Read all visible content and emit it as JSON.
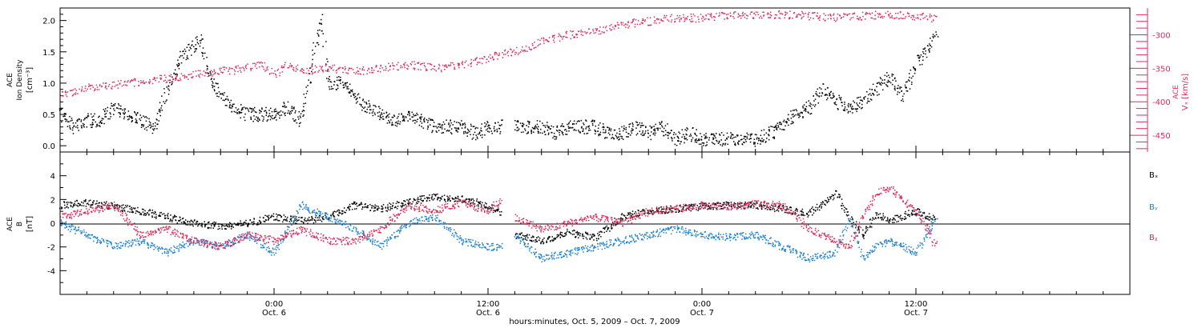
{
  "colors": {
    "black": "#000000",
    "red": "#dc2d5a",
    "blue": "#1a7fd4"
  },
  "chart_data": [
    {
      "type": "scatter",
      "panel": "top",
      "ylabel_lines": [
        "ACE",
        "Ion Density",
        "[cm⁻³]"
      ],
      "ylim": [
        -0.1,
        2.2
      ],
      "yticks": [
        "0.0",
        "0.5",
        "1.0",
        "1.5",
        "2.0"
      ],
      "right_axis": {
        "label_lines": [
          "ACE",
          "Vₓ [km/s]"
        ],
        "ylim": [
          -475,
          -260
        ],
        "yticks": [
          "-300",
          "-350",
          "-400",
          "-450"
        ]
      },
      "series": [
        {
          "color": "#000000",
          "axis": "left",
          "points": [
            [
              0,
              0.5
            ],
            [
              2,
              0.3
            ],
            [
              4,
              0.4
            ],
            [
              6,
              0.4
            ],
            [
              8,
              0.6
            ],
            [
              10,
              0.5
            ],
            [
              12,
              0.4
            ],
            [
              14,
              0.3
            ],
            [
              16,
              0.9
            ],
            [
              18,
              1.4
            ],
            [
              20,
              1.6
            ],
            [
              21,
              1.7
            ],
            [
              22,
              1.2
            ],
            [
              24,
              0.8
            ],
            [
              26,
              0.6
            ],
            [
              28,
              0.5
            ],
            [
              30,
              0.5
            ],
            [
              32,
              0.5
            ],
            [
              34,
              0.6
            ],
            [
              36,
              0.4
            ],
            [
              38,
              1.5
            ],
            [
              39,
              2.1
            ],
            [
              40,
              1.0
            ],
            [
              42,
              1.0
            ],
            [
              44,
              0.8
            ],
            [
              46,
              0.6
            ],
            [
              48,
              0.5
            ],
            [
              50,
              0.4
            ],
            [
              52,
              0.5
            ],
            [
              54,
              0.4
            ],
            [
              56,
              0.3
            ],
            [
              58,
              0.3
            ],
            [
              60,
              0.3
            ],
            [
              62,
              0.2
            ],
            [
              64,
              0.3
            ],
            [
              66,
              0.3
            ],
            [
              68,
              0.3
            ],
            [
              70,
              0.3
            ],
            [
              72,
              0.3
            ],
            [
              74,
              0.2
            ],
            [
              76,
              0.3
            ],
            [
              78,
              0.3
            ],
            [
              80,
              0.3
            ],
            [
              82,
              0.2
            ],
            [
              84,
              0.2
            ],
            [
              86,
              0.3
            ],
            [
              88,
              0.2
            ],
            [
              90,
              0.3
            ],
            [
              92,
              0.1
            ],
            [
              94,
              0.2
            ],
            [
              96,
              0.1
            ],
            [
              98,
              0.1
            ],
            [
              100,
              0.1
            ],
            [
              102,
              0.1
            ],
            [
              104,
              0.1
            ],
            [
              106,
              0.2
            ],
            [
              108,
              0.3
            ],
            [
              110,
              0.5
            ],
            [
              112,
              0.6
            ],
            [
              114,
              0.9
            ],
            [
              116,
              0.7
            ],
            [
              118,
              0.6
            ],
            [
              120,
              0.7
            ],
            [
              122,
              0.9
            ],
            [
              124,
              1.1
            ],
            [
              126,
              0.8
            ],
            [
              128,
              1.3
            ],
            [
              130,
              1.6
            ],
            [
              131,
              1.8
            ]
          ],
          "gap_after_x": [
            66
          ]
        },
        {
          "color": "#dc2d5a",
          "axis": "right",
          "points": [
            [
              0,
              -390
            ],
            [
              4,
              -380
            ],
            [
              8,
              -375
            ],
            [
              12,
              -370
            ],
            [
              16,
              -365
            ],
            [
              20,
              -360
            ],
            [
              24,
              -355
            ],
            [
              28,
              -350
            ],
            [
              30,
              -345
            ],
            [
              32,
              -360
            ],
            [
              34,
              -345
            ],
            [
              36,
              -355
            ],
            [
              40,
              -350
            ],
            [
              44,
              -355
            ],
            [
              48,
              -350
            ],
            [
              52,
              -345
            ],
            [
              56,
              -350
            ],
            [
              60,
              -345
            ],
            [
              64,
              -335
            ],
            [
              68,
              -325
            ],
            [
              70,
              -320
            ],
            [
              72,
              -310
            ],
            [
              74,
              -305
            ],
            [
              76,
              -300
            ],
            [
              80,
              -295
            ],
            [
              84,
              -285
            ],
            [
              88,
              -280
            ],
            [
              92,
              -275
            ],
            [
              96,
              -275
            ],
            [
              100,
              -272
            ],
            [
              104,
              -270
            ],
            [
              108,
              -270
            ],
            [
              112,
              -272
            ],
            [
              116,
              -275
            ],
            [
              120,
              -272
            ],
            [
              124,
              -270
            ],
            [
              128,
              -273
            ],
            [
              131,
              -275
            ]
          ],
          "gap_after_x": [
            66
          ]
        }
      ]
    },
    {
      "type": "scatter",
      "panel": "bottom",
      "ylabel_lines": [
        "ACE",
        "B",
        "[nT]"
      ],
      "ylim": [
        -6,
        6
      ],
      "yticks": [
        "4",
        "2",
        "0",
        "-2",
        "-4"
      ],
      "series": [
        {
          "name": "Bₓ",
          "color": "#000000",
          "points": [
            [
              0,
              1.5
            ],
            [
              4,
              1.7
            ],
            [
              8,
              1.4
            ],
            [
              12,
              1.0
            ],
            [
              16,
              0.5
            ],
            [
              20,
              0.0
            ],
            [
              24,
              -0.3
            ],
            [
              28,
              0.0
            ],
            [
              32,
              0.5
            ],
            [
              36,
              0.2
            ],
            [
              40,
              0.5
            ],
            [
              44,
              1.5
            ],
            [
              48,
              1.2
            ],
            [
              52,
              1.8
            ],
            [
              56,
              2.2
            ],
            [
              60,
              2.0
            ],
            [
              64,
              1.5
            ],
            [
              66,
              0.8
            ],
            [
              68,
              -1.0
            ],
            [
              72,
              -1.5
            ],
            [
              76,
              -0.8
            ],
            [
              80,
              -1.2
            ],
            [
              84,
              0.5
            ],
            [
              88,
              1.0
            ],
            [
              92,
              1.2
            ],
            [
              96,
              1.4
            ],
            [
              100,
              1.5
            ],
            [
              104,
              1.5
            ],
            [
              108,
              1.2
            ],
            [
              112,
              0.8
            ],
            [
              116,
              2.5
            ],
            [
              118,
              0.5
            ],
            [
              120,
              -1.0
            ],
            [
              122,
              0.8
            ],
            [
              124,
              0.2
            ],
            [
              128,
              1.0
            ],
            [
              131,
              0.3
            ]
          ],
          "gap_after_x": [
            66
          ]
        },
        {
          "name": "Bᵧ",
          "color": "#1a7fd4",
          "points": [
            [
              0,
              0.0
            ],
            [
              4,
              -1.0
            ],
            [
              8,
              -2.0
            ],
            [
              12,
              -1.5
            ],
            [
              16,
              -2.5
            ],
            [
              20,
              -1.5
            ],
            [
              24,
              -2.0
            ],
            [
              28,
              -1.0
            ],
            [
              32,
              -2.5
            ],
            [
              36,
              1.5
            ],
            [
              40,
              0.5
            ],
            [
              44,
              -0.5
            ],
            [
              48,
              -2.0
            ],
            [
              52,
              0.0
            ],
            [
              56,
              0.5
            ],
            [
              60,
              -1.5
            ],
            [
              64,
              -2.0
            ],
            [
              66,
              -2.0
            ],
            [
              68,
              -1.0
            ],
            [
              72,
              -3.0
            ],
            [
              76,
              -2.5
            ],
            [
              80,
              -2.0
            ],
            [
              84,
              -1.5
            ],
            [
              88,
              -1.0
            ],
            [
              92,
              -0.5
            ],
            [
              96,
              -1.0
            ],
            [
              100,
              -1.2
            ],
            [
              104,
              -1.0
            ],
            [
              108,
              -2.0
            ],
            [
              112,
              -3.0
            ],
            [
              116,
              -2.5
            ],
            [
              118,
              0.5
            ],
            [
              120,
              -3.0
            ],
            [
              122,
              -2.0
            ],
            [
              124,
              -1.5
            ],
            [
              128,
              -2.5
            ],
            [
              131,
              0.5
            ]
          ],
          "gap_after_x": [
            66
          ]
        },
        {
          "name": "Bᵪ",
          "color": "#dc2d5a",
          "points": [
            [
              0,
              0.5
            ],
            [
              4,
              1.0
            ],
            [
              8,
              1.5
            ],
            [
              12,
              -1.0
            ],
            [
              16,
              -0.5
            ],
            [
              20,
              -1.5
            ],
            [
              24,
              -2.0
            ],
            [
              28,
              -1.0
            ],
            [
              32,
              -1.5
            ],
            [
              36,
              -0.5
            ],
            [
              40,
              -1.5
            ],
            [
              44,
              -1.5
            ],
            [
              48,
              -0.5
            ],
            [
              52,
              1.5
            ],
            [
              56,
              1.0
            ],
            [
              60,
              1.8
            ],
            [
              64,
              1.0
            ],
            [
              66,
              2.0
            ],
            [
              68,
              0.5
            ],
            [
              72,
              -0.5
            ],
            [
              76,
              0.0
            ],
            [
              80,
              0.5
            ],
            [
              84,
              0.0
            ],
            [
              88,
              1.0
            ],
            [
              92,
              1.2
            ],
            [
              96,
              1.5
            ],
            [
              100,
              1.4
            ],
            [
              104,
              1.6
            ],
            [
              108,
              1.5
            ],
            [
              112,
              -0.5
            ],
            [
              116,
              -1.5
            ],
            [
              118,
              -2.0
            ],
            [
              120,
              0.5
            ],
            [
              122,
              2.5
            ],
            [
              124,
              3.0
            ],
            [
              128,
              1.0
            ],
            [
              131,
              -2.0
            ]
          ],
          "gap_after_x": [
            66
          ]
        }
      ]
    }
  ],
  "xaxis": {
    "xlim": [
      0,
      160
    ],
    "ticks": [
      {
        "x": 32,
        "time": "0:00",
        "date": "Oct. 6"
      },
      {
        "x": 64,
        "time": "12:00",
        "date": "Oct. 6"
      },
      {
        "x": 96,
        "time": "0:00",
        "date": "Oct. 7"
      },
      {
        "x": 128,
        "time": "12:00",
        "date": "Oct. 7"
      }
    ],
    "label": "hours:minutes, Oct.  5, 2009 – Oct.  7, 2009"
  },
  "legend": [
    "Bₓ",
    "Bᵧ",
    "Bᵪ"
  ]
}
